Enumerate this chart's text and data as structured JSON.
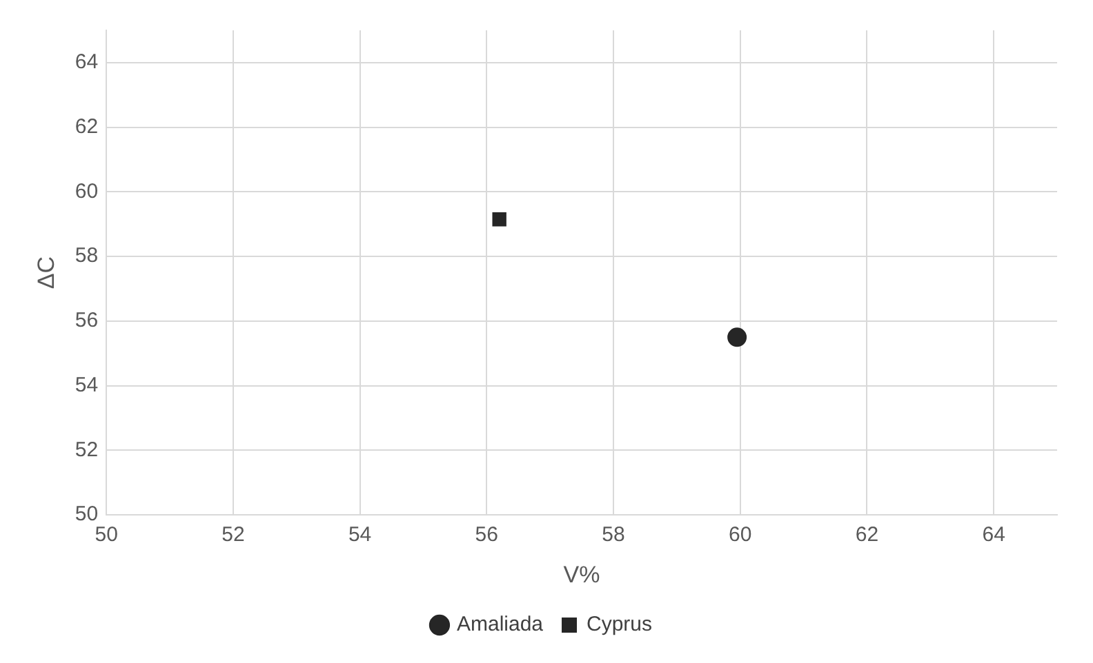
{
  "chart_data": {
    "type": "scatter",
    "xlabel": "V%",
    "ylabel": "ΔC",
    "series": [
      {
        "name": "Amaliada",
        "color": "#262626",
        "marker": "circle",
        "x": [
          59.95
        ],
        "values": [
          55.5
        ]
      },
      {
        "name": "Cyprus",
        "color": "#262626",
        "marker": "square",
        "x": [
          56.2
        ],
        "values": [
          59.15
        ]
      }
    ],
    "xlim": [
      50,
      65
    ],
    "xticks": [
      50,
      52,
      54,
      56,
      58,
      60,
      62,
      64
    ],
    "ylim": [
      50,
      65
    ],
    "yticks": [
      50,
      52,
      54,
      56,
      58,
      60,
      62,
      64
    ],
    "grid": true,
    "legend": "bottom"
  }
}
